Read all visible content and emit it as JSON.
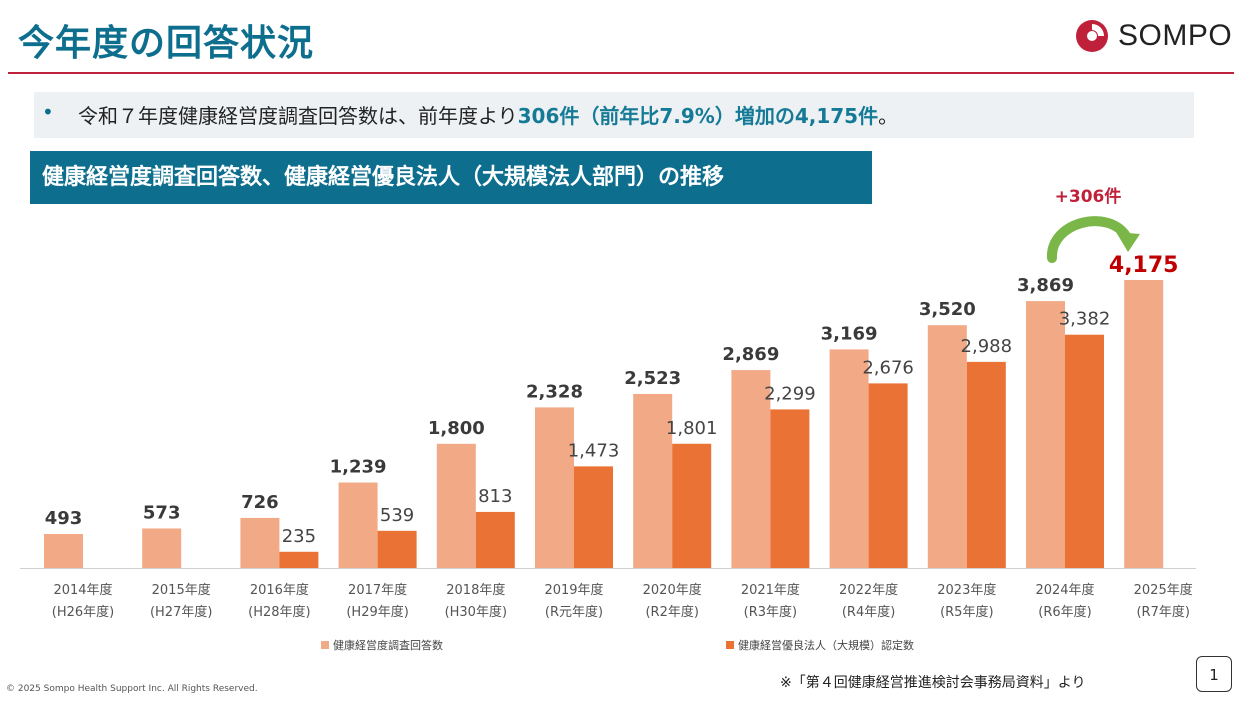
{
  "header": {
    "title": "今年度の回答状況",
    "logo_text": "SOMPO"
  },
  "bullet": {
    "prefix": "令和７年度健康経営度調査回答数は、前年度より",
    "highlight1": "306件（前年比7.9%）増加の4,175件",
    "suffix": "。"
  },
  "section": {
    "title": "健康経営度調査回答数、健康経営優良法人（大規模法人部門）の推移"
  },
  "chart_data": {
    "type": "bar",
    "title": "健康経営度調査回答数、健康経営優良法人（大規模法人部門）の推移",
    "categories": [
      "2014年度",
      "2015年度",
      "2016年度",
      "2017年度",
      "2018年度",
      "2019年度",
      "2020年度",
      "2021年度",
      "2022年度",
      "2023年度",
      "2024年度",
      "2025年度"
    ],
    "sub_categories": [
      "(H26年度)",
      "(H27年度)",
      "(H28年度)",
      "(H29年度)",
      "(H30年度)",
      "(R元年度)",
      "(R2年度)",
      "(R3年度)",
      "(R4年度)",
      "(R5年度)",
      "(R6年度)",
      "(R7年度)"
    ],
    "series": [
      {
        "name": "健康経営度調査回答数",
        "color": "#f2a985",
        "values": [
          493,
          573,
          726,
          1239,
          1800,
          2328,
          2523,
          2869,
          3169,
          3520,
          3869,
          4175
        ],
        "labels": [
          "493",
          "573",
          "726",
          "1,239",
          "1,800",
          "2,328",
          "2,523",
          "2,869",
          "3,169",
          "3,520",
          "3,869",
          "4,175"
        ]
      },
      {
        "name": "健康経営優良法人（大規模）認定数",
        "color": "#ea7234",
        "values": [
          null,
          null,
          235,
          539,
          813,
          1473,
          1801,
          2299,
          2676,
          2988,
          3382,
          null
        ],
        "labels": [
          "",
          "",
          "235",
          "539",
          "813",
          "1,473",
          "1,801",
          "2,299",
          "2,676",
          "2,988",
          "3,382",
          ""
        ]
      }
    ],
    "ylim": [
      0,
      4500
    ],
    "grid": false,
    "legend_position": "bottom",
    "annotation": {
      "text": "+306件",
      "color": "#c0213a",
      "arrow_color": "#7ab648"
    },
    "highlight_label_color": "#c00000"
  },
  "footer": {
    "copyright": "© 2025 Sompo Health Support Inc. All Rights Reserved.",
    "source": "※「第４回健康経営推進検討会事務局資料」より",
    "page_number": "1"
  },
  "colors": {
    "brand": "#0e6e8e",
    "accent_red": "#c0213a"
  }
}
